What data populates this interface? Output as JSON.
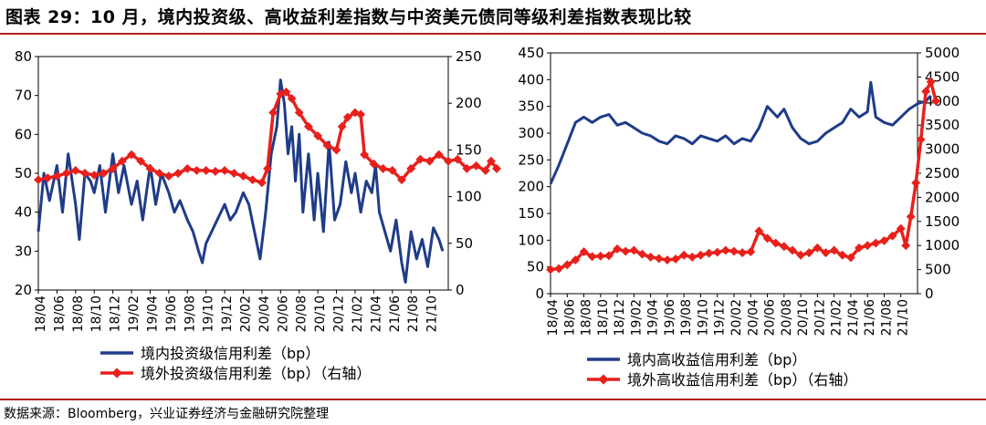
{
  "title": "图表 29：10 月，境内投资级、高收益利差指数与中资美元债同等级利差指数表现比较",
  "source": "数据来源：Bloomberg，兴业证券经济与金融研究院整理",
  "colors": {
    "domestic": "#1f3c88",
    "offshore": "#e8201c",
    "accent_rule": "#b01e22"
  },
  "chart_data": [
    {
      "type": "line",
      "x_ticks": [
        "18/04",
        "18/06",
        "18/08",
        "18/10",
        "18/12",
        "19/02",
        "19/04",
        "19/06",
        "19/08",
        "19/10",
        "19/12",
        "20/02",
        "20/04",
        "20/06",
        "20/08",
        "20/10",
        "20/12",
        "21/02",
        "21/04",
        "21/06",
        "21/08",
        "21/10"
      ],
      "y_left": {
        "ylim": [
          20,
          80
        ],
        "ticks": [
          "20",
          "30",
          "40",
          "50",
          "60",
          "70",
          "80"
        ]
      },
      "y_right": {
        "ylim": [
          0,
          250
        ],
        "ticks": [
          "0",
          "50",
          "100",
          "150",
          "200",
          "250"
        ]
      },
      "grid": false,
      "legend_position": "bottom",
      "series": [
        {
          "name": "境内投资级信用利差（bp）",
          "axis": "left",
          "color": "#1f3c88",
          "markers": false,
          "points": [
            [
              0,
              35
            ],
            [
              0.3,
              50
            ],
            [
              0.6,
              43
            ],
            [
              1,
              52
            ],
            [
              1.3,
              40
            ],
            [
              1.6,
              55
            ],
            [
              2,
              42
            ],
            [
              2.2,
              33
            ],
            [
              2.5,
              50
            ],
            [
              2.8,
              48
            ],
            [
              3,
              45
            ],
            [
              3.3,
              52
            ],
            [
              3.6,
              40
            ],
            [
              4,
              55
            ],
            [
              4.3,
              45
            ],
            [
              4.6,
              52
            ],
            [
              5,
              42
            ],
            [
              5.3,
              48
            ],
            [
              5.6,
              38
            ],
            [
              6,
              52
            ],
            [
              6.3,
              42
            ],
            [
              6.6,
              50
            ],
            [
              7,
              45
            ],
            [
              7.3,
              40
            ],
            [
              7.6,
              43
            ],
            [
              8,
              38
            ],
            [
              8.3,
              35
            ],
            [
              8.6,
              30
            ],
            [
              8.8,
              27
            ],
            [
              9,
              32
            ],
            [
              9.3,
              35
            ],
            [
              9.6,
              38
            ],
            [
              10,
              42
            ],
            [
              10.3,
              38
            ],
            [
              10.6,
              40
            ],
            [
              11,
              45
            ],
            [
              11.3,
              42
            ],
            [
              11.6,
              35
            ],
            [
              11.9,
              28
            ],
            [
              12.2,
              40
            ],
            [
              12.5,
              55
            ],
            [
              12.8,
              62
            ],
            [
              13.0,
              74
            ],
            [
              13.2,
              68
            ],
            [
              13.4,
              55
            ],
            [
              13.6,
              62
            ],
            [
              13.8,
              48
            ],
            [
              14,
              60
            ],
            [
              14.2,
              40
            ],
            [
              14.5,
              55
            ],
            [
              14.8,
              38
            ],
            [
              15,
              50
            ],
            [
              15.3,
              35
            ],
            [
              15.6,
              58
            ],
            [
              15.9,
              38
            ],
            [
              16.2,
              42
            ],
            [
              16.5,
              53
            ],
            [
              16.8,
              45
            ],
            [
              17,
              50
            ],
            [
              17.3,
              40
            ],
            [
              17.6,
              48
            ],
            [
              17.9,
              45
            ],
            [
              18.1,
              52
            ],
            [
              18.3,
              40
            ],
            [
              18.6,
              35
            ],
            [
              18.9,
              30
            ],
            [
              19.2,
              38
            ],
            [
              19.5,
              27
            ],
            [
              19.7,
              22
            ],
            [
              20,
              35
            ],
            [
              20.3,
              28
            ],
            [
              20.6,
              33
            ],
            [
              20.9,
              26
            ],
            [
              21.2,
              36
            ],
            [
              21.5,
              33
            ],
            [
              21.7,
              30
            ]
          ]
        },
        {
          "name": "境外投资级信用利差（bp）（右轴）",
          "axis": "right",
          "color": "#e8201c",
          "markers": true,
          "points": [
            [
              0,
              118
            ],
            [
              0.5,
              120
            ],
            [
              1,
              122
            ],
            [
              1.5,
              125
            ],
            [
              2,
              128
            ],
            [
              2.5,
              125
            ],
            [
              3,
              123
            ],
            [
              3.5,
              125
            ],
            [
              4,
              130
            ],
            [
              4.5,
              138
            ],
            [
              5,
              145
            ],
            [
              5.5,
              138
            ],
            [
              6,
              130
            ],
            [
              6.5,
              125
            ],
            [
              7,
              122
            ],
            [
              7.5,
              125
            ],
            [
              8,
              130
            ],
            [
              8.5,
              128
            ],
            [
              9,
              128
            ],
            [
              9.5,
              127
            ],
            [
              10,
              128
            ],
            [
              10.5,
              125
            ],
            [
              11,
              122
            ],
            [
              11.5,
              118
            ],
            [
              12,
              115
            ],
            [
              12.3,
              130
            ],
            [
              12.6,
              190
            ],
            [
              13,
              210
            ],
            [
              13.3,
              212
            ],
            [
              13.6,
              205
            ],
            [
              14,
              190
            ],
            [
              14.5,
              175
            ],
            [
              15,
              165
            ],
            [
              15.5,
              155
            ],
            [
              16,
              150
            ],
            [
              16.3,
              175
            ],
            [
              16.6,
              185
            ],
            [
              17,
              190
            ],
            [
              17.3,
              188
            ],
            [
              17.5,
              145
            ],
            [
              18,
              135
            ],
            [
              18.5,
              130
            ],
            [
              19,
              128
            ],
            [
              19.5,
              118
            ],
            [
              20,
              130
            ],
            [
              20.5,
              140
            ],
            [
              21,
              138
            ],
            [
              21.5,
              145
            ],
            [
              22,
              138
            ],
            [
              22.5,
              140
            ],
            [
              23,
              130
            ],
            [
              23.5,
              133
            ],
            [
              24,
              128
            ],
            [
              24.3,
              138
            ],
            [
              24.6,
              130
            ]
          ]
        }
      ]
    },
    {
      "type": "line",
      "x_ticks": [
        "18/04",
        "18/06",
        "18/08",
        "18/10",
        "18/12",
        "19/02",
        "19/04",
        "19/06",
        "19/08",
        "19/10",
        "19/12",
        "20/02",
        "20/04",
        "20/06",
        "20/08",
        "20/10",
        "20/12",
        "21/02",
        "21/04",
        "21/06",
        "21/08",
        "21/10"
      ],
      "y_left": {
        "ylim": [
          0,
          450
        ],
        "ticks": [
          "0",
          "50",
          "100",
          "150",
          "200",
          "250",
          "300",
          "350",
          "400",
          "450"
        ]
      },
      "y_right": {
        "ylim": [
          0,
          5000
        ],
        "ticks": [
          "0",
          "500",
          "1000",
          "1500",
          "2000",
          "2500",
          "3000",
          "3500",
          "4000",
          "4500",
          "5000"
        ]
      },
      "grid": false,
      "legend_position": "bottom",
      "series": [
        {
          "name": "境内高收益信用利差（bp）",
          "axis": "left",
          "color": "#1f3c88",
          "markers": false,
          "points": [
            [
              0,
              205
            ],
            [
              0.5,
              240
            ],
            [
              1,
              280
            ],
            [
              1.5,
              320
            ],
            [
              2,
              330
            ],
            [
              2.5,
              320
            ],
            [
              3,
              330
            ],
            [
              3.5,
              335
            ],
            [
              4,
              315
            ],
            [
              4.5,
              320
            ],
            [
              5,
              310
            ],
            [
              5.5,
              300
            ],
            [
              6,
              295
            ],
            [
              6.5,
              285
            ],
            [
              7,
              280
            ],
            [
              7.5,
              295
            ],
            [
              8,
              290
            ],
            [
              8.5,
              280
            ],
            [
              9,
              295
            ],
            [
              9.5,
              290
            ],
            [
              10,
              285
            ],
            [
              10.5,
              295
            ],
            [
              11,
              280
            ],
            [
              11.5,
              290
            ],
            [
              12,
              285
            ],
            [
              12.5,
              310
            ],
            [
              13,
              350
            ],
            [
              13.3,
              340
            ],
            [
              13.6,
              330
            ],
            [
              14,
              345
            ],
            [
              14.5,
              310
            ],
            [
              15,
              290
            ],
            [
              15.5,
              280
            ],
            [
              16,
              285
            ],
            [
              16.5,
              300
            ],
            [
              17,
              310
            ],
            [
              17.5,
              320
            ],
            [
              18,
              345
            ],
            [
              18.5,
              330
            ],
            [
              19,
              340
            ],
            [
              19.2,
              395
            ],
            [
              19.5,
              330
            ],
            [
              20,
              320
            ],
            [
              20.5,
              315
            ],
            [
              21,
              330
            ],
            [
              21.5,
              345
            ],
            [
              22,
              355
            ],
            [
              22.5,
              360
            ],
            [
              22.8,
              370
            ]
          ]
        },
        {
          "name": "境外高收益信用利差（bp）（右轴）",
          "axis": "right",
          "color": "#e8201c",
          "markers": true,
          "points": [
            [
              0,
              500
            ],
            [
              0.5,
              520
            ],
            [
              1,
              600
            ],
            [
              1.5,
              700
            ],
            [
              2,
              870
            ],
            [
              2.5,
              770
            ],
            [
              3,
              780
            ],
            [
              3.5,
              790
            ],
            [
              4,
              930
            ],
            [
              4.5,
              880
            ],
            [
              5,
              900
            ],
            [
              5.5,
              820
            ],
            [
              6,
              760
            ],
            [
              6.5,
              730
            ],
            [
              7,
              700
            ],
            [
              7.5,
              720
            ],
            [
              8,
              800
            ],
            [
              8.5,
              760
            ],
            [
              9,
              800
            ],
            [
              9.5,
              840
            ],
            [
              10,
              860
            ],
            [
              10.5,
              900
            ],
            [
              11,
              880
            ],
            [
              11.5,
              850
            ],
            [
              12,
              870
            ],
            [
              12.5,
              1300
            ],
            [
              13,
              1150
            ],
            [
              13.5,
              1050
            ],
            [
              14,
              980
            ],
            [
              14.5,
              900
            ],
            [
              15,
              800
            ],
            [
              15.5,
              850
            ],
            [
              16,
              950
            ],
            [
              16.5,
              850
            ],
            [
              17,
              900
            ],
            [
              17.5,
              800
            ],
            [
              18,
              750
            ],
            [
              18.5,
              950
            ],
            [
              19,
              1000
            ],
            [
              19.5,
              1050
            ],
            [
              20,
              1100
            ],
            [
              20.5,
              1200
            ],
            [
              21,
              1350
            ],
            [
              21.3,
              1000
            ],
            [
              21.6,
              1600
            ],
            [
              21.9,
              2300
            ],
            [
              22.2,
              3200
            ],
            [
              22.5,
              4200
            ],
            [
              22.8,
              4400
            ],
            [
              23.1,
              4000
            ]
          ]
        }
      ]
    }
  ]
}
